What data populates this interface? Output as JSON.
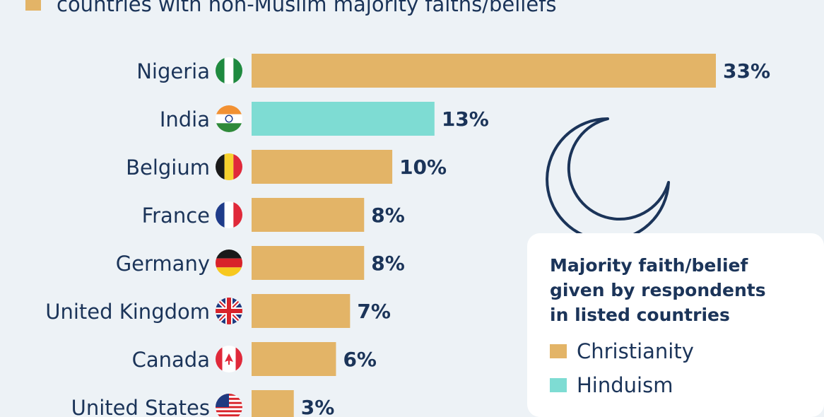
{
  "subtitle": {
    "text": "countries with non-Muslim majority faiths/beliefs",
    "swatch_color": "#e3b467"
  },
  "legend": {
    "title": "Majority faith/belief given by respondents in listed countries",
    "items": [
      {
        "label": "Christianity",
        "color": "#e3b467"
      },
      {
        "label": "Hinduism",
        "color": "#7edcd3"
      }
    ]
  },
  "chart_data": {
    "type": "bar",
    "orientation": "horizontal",
    "categories": [
      "Nigeria",
      "India",
      "Belgium",
      "France",
      "Germany",
      "United Kingdom",
      "Canada",
      "United States"
    ],
    "values": [
      33,
      13,
      10,
      8,
      8,
      7,
      6,
      3
    ],
    "value_labels": [
      "33%",
      "13%",
      "10%",
      "8%",
      "8%",
      "7%",
      "6%",
      "3%"
    ],
    "faith": [
      "Christianity",
      "Hinduism",
      "Christianity",
      "Christianity",
      "Christianity",
      "Christianity",
      "Christianity",
      "Christianity"
    ],
    "flag_icons": [
      "nigeria-flag-icon",
      "india-flag-icon",
      "belgium-flag-icon",
      "france-flag-icon",
      "germany-flag-icon",
      "united-kingdom-flag-icon",
      "canada-flag-icon",
      "united-states-flag-icon"
    ],
    "colors": {
      "Christianity": "#e3b467",
      "Hinduism": "#7edcd3"
    },
    "xlim": [
      0,
      33
    ],
    "grid": false,
    "legend_position": "right"
  }
}
